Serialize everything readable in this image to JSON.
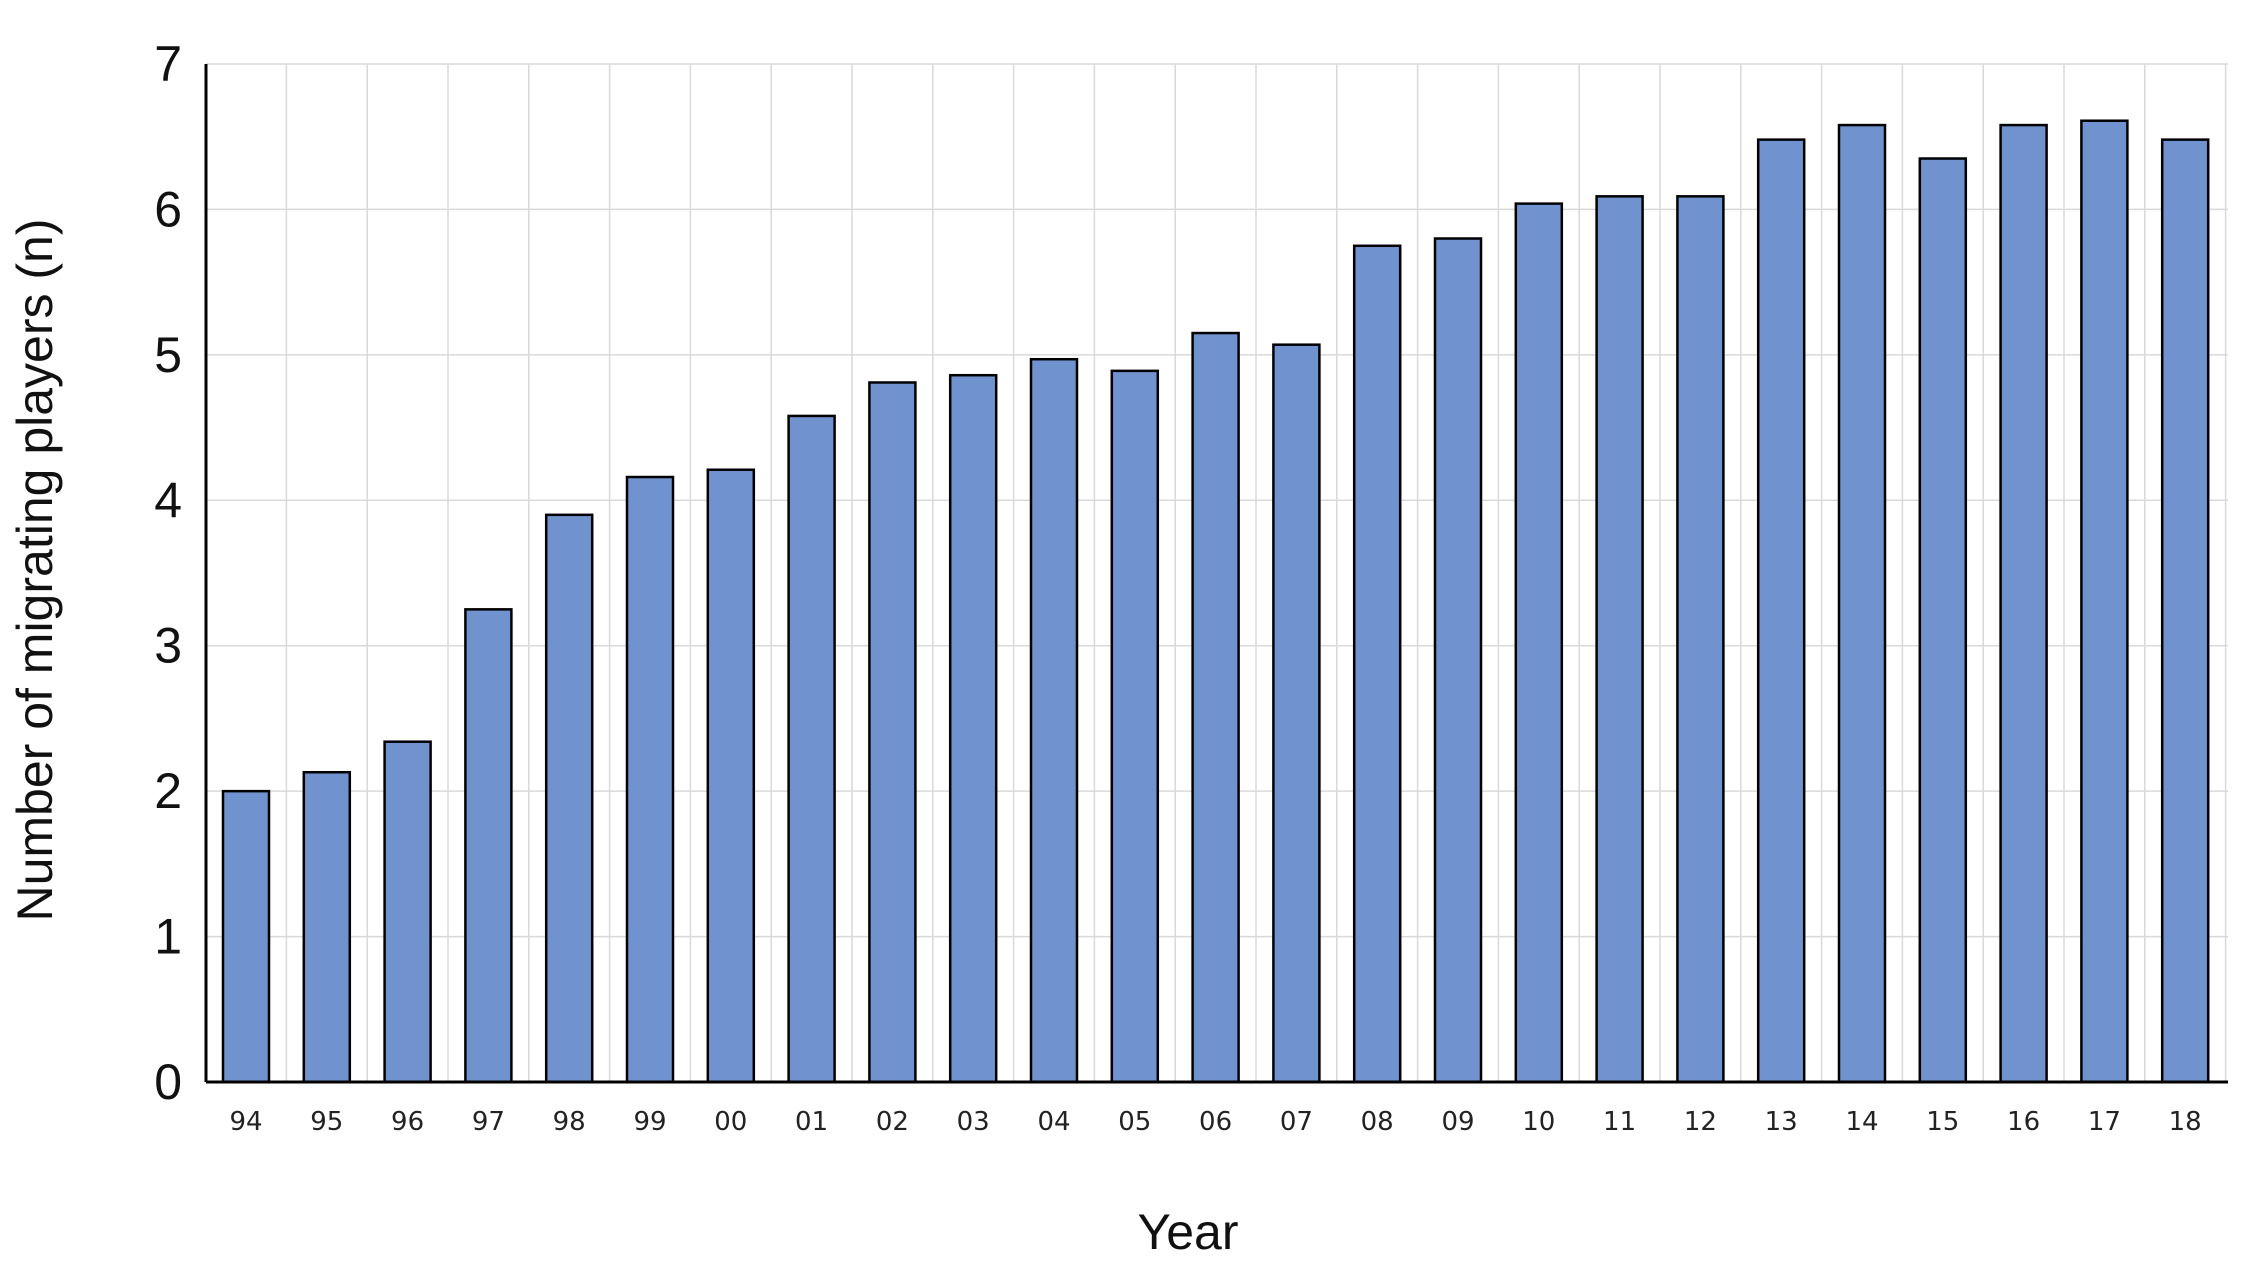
{
  "chart_data": {
    "type": "bar",
    "title": "",
    "xlabel": "Year",
    "ylabel": "Number of migrating players (n)",
    "categories": [
      "94",
      "95",
      "96",
      "97",
      "98",
      "99",
      "00",
      "01",
      "02",
      "03",
      "04",
      "05",
      "06",
      "07",
      "08",
      "09",
      "10",
      "11",
      "12",
      "13",
      "14",
      "15",
      "16",
      "17",
      "18"
    ],
    "values": [
      2.0,
      2.13,
      2.34,
      3.25,
      3.9,
      4.16,
      4.21,
      4.58,
      4.81,
      4.86,
      4.97,
      4.89,
      5.15,
      5.07,
      5.75,
      5.8,
      6.04,
      6.09,
      6.09,
      6.48,
      6.58,
      6.35,
      6.58,
      6.61,
      6.48
    ],
    "ylim": [
      0,
      7
    ],
    "yticks": [
      "0",
      "1",
      "2",
      "3",
      "4",
      "5",
      "6",
      "7"
    ],
    "grid": true,
    "colors": {
      "bar_fill": "#7092cf",
      "bar_stroke": "#000000",
      "grid": "#d9d9d9"
    }
  }
}
